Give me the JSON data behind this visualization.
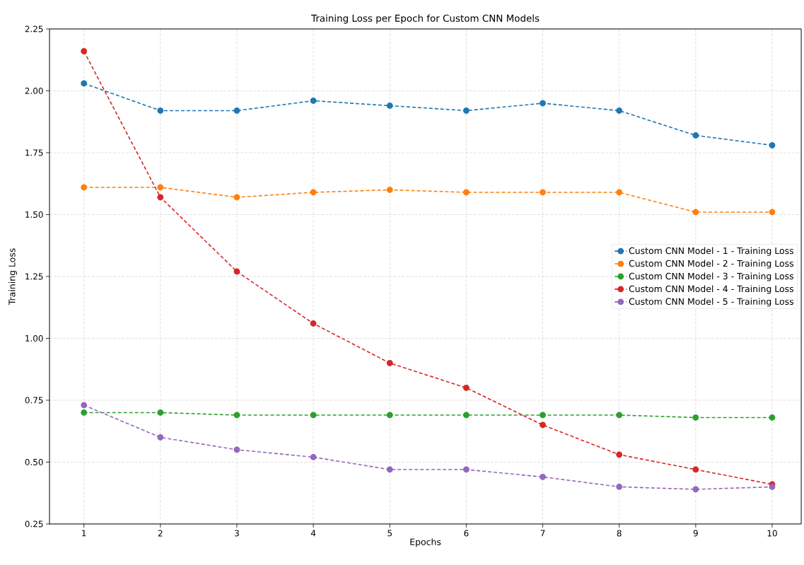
{
  "chart_data": {
    "type": "line",
    "title": "Training Loss per Epoch for Custom CNN Models",
    "xlabel": "Epochs",
    "ylabel": "Training Loss",
    "x": [
      1,
      2,
      3,
      4,
      5,
      6,
      7,
      8,
      9,
      10
    ],
    "series": [
      {
        "name": "Custom CNN Model - 1 - Training Loss",
        "color": "#1f77b4",
        "values": [
          2.03,
          1.92,
          1.92,
          1.96,
          1.94,
          1.92,
          1.95,
          1.92,
          1.82,
          1.78
        ]
      },
      {
        "name": "Custom CNN Model - 2 - Training Loss",
        "color": "#ff7f0e",
        "values": [
          1.61,
          1.61,
          1.57,
          1.59,
          1.6,
          1.59,
          1.59,
          1.59,
          1.51,
          1.51
        ]
      },
      {
        "name": "Custom CNN Model - 3 - Training Loss",
        "color": "#2ca02c",
        "values": [
          0.7,
          0.7,
          0.69,
          0.69,
          0.69,
          0.69,
          0.69,
          0.69,
          0.68,
          0.68
        ]
      },
      {
        "name": "Custom CNN Model - 4 - Training Loss",
        "color": "#d62728",
        "values": [
          2.16,
          1.57,
          1.27,
          1.06,
          0.9,
          0.8,
          0.65,
          0.53,
          0.47,
          0.41
        ]
      },
      {
        "name": "Custom CNN Model - 5 - Training Loss",
        "color": "#9467bd",
        "values": [
          0.73,
          0.6,
          0.55,
          0.52,
          0.47,
          0.47,
          0.44,
          0.4,
          0.39,
          0.4
        ]
      }
    ],
    "xlim": [
      0.55,
      10.38
    ],
    "ylim": [
      0.25,
      2.25
    ],
    "xticks": [
      1,
      2,
      3,
      4,
      5,
      6,
      7,
      8,
      9,
      10
    ],
    "yticks": [
      {
        "value": 0.25,
        "label": "0.25"
      },
      {
        "value": 0.5,
        "label": "0.50"
      },
      {
        "value": 0.75,
        "label": "0.75"
      },
      {
        "value": 1.0,
        "label": "1.00"
      },
      {
        "value": 1.25,
        "label": "1.25"
      },
      {
        "value": 1.5,
        "label": "1.50"
      },
      {
        "value": 1.75,
        "label": "1.75"
      },
      {
        "value": 2.0,
        "label": "2.00"
      },
      {
        "value": 2.25,
        "label": "2.25"
      }
    ],
    "grid": true,
    "legend": "right",
    "marker": "circle",
    "line_style": "dashed"
  }
}
